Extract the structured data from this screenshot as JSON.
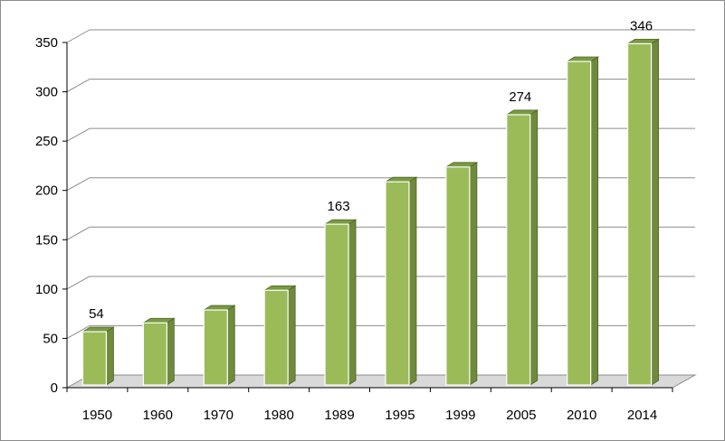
{
  "chart_data": {
    "type": "bar",
    "title": "",
    "xlabel": "",
    "ylabel": "",
    "categories": [
      "1950",
      "1960",
      "1970",
      "1980",
      "1989",
      "1995",
      "1999",
      "2005",
      "2010",
      "2014"
    ],
    "values": [
      54,
      63,
      76,
      96,
      163,
      206,
      221,
      274,
      328,
      346
    ],
    "data_labels": [
      "54",
      "",
      "",
      "",
      "163",
      "",
      "",
      "274",
      "",
      "346"
    ],
    "ylim": [
      0,
      350
    ],
    "yticks": [
      0,
      50,
      100,
      150,
      200,
      250,
      300,
      350
    ],
    "grid": true,
    "legend": "none",
    "style": "3d-column",
    "colors": {
      "bar_front": "#9bbb59",
      "bar_side": "#6f8a3c",
      "bar_top": "#7a9a41",
      "gridline": "#8c8c8c",
      "floor": "#d9d9d9"
    }
  }
}
